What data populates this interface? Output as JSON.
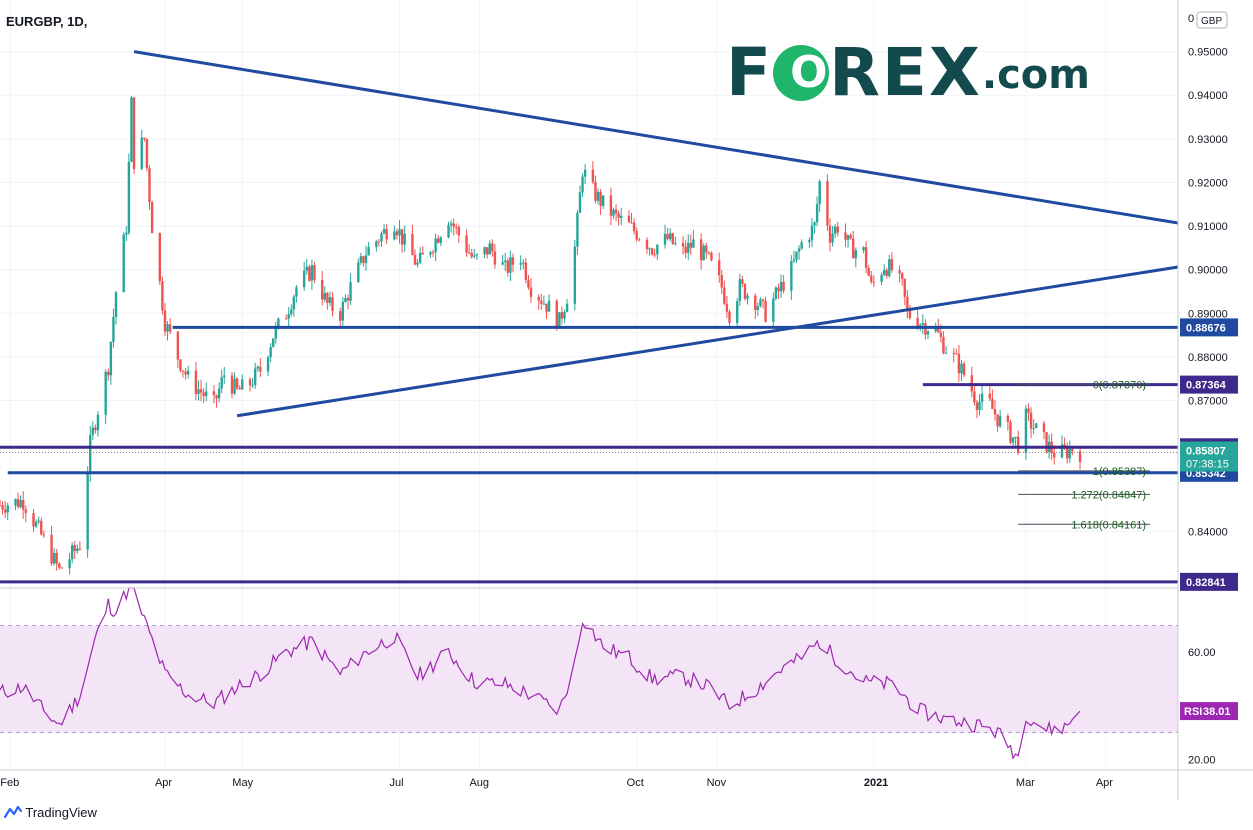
{
  "header": {
    "symbol": "EURGBP, 1D,"
  },
  "logo": {
    "brand_left": "F",
    "brand_o": "O",
    "brand_right": "REX",
    "brand_suffix": ".com",
    "text_color": "#134a4d",
    "o_color": "#1fb56a"
  },
  "footer": {
    "brand": "TradingView"
  },
  "chart_data": {
    "type": "candlestick",
    "price_axis": {
      "currency": "GBP",
      "top_label": "0",
      "ylim": [
        0.827,
        0.96
      ],
      "tick_labels": [
        "0.95000",
        "0.94000",
        "0.93000",
        "0.92000",
        "0.91000",
        "0.90000",
        "0.89000",
        "0.88000",
        "0.87000",
        "0.84000"
      ]
    },
    "x_axis": {
      "tick_labels": [
        "Feb",
        "Apr",
        "May",
        "Jul",
        "Aug",
        "Oct",
        "Nov",
        "2021",
        "Mar",
        "Apr"
      ],
      "tick_dates": [
        "2020-02-01",
        "2020-04-01",
        "2020-05-01",
        "2020-07-01",
        "2020-08-01",
        "2020-10-01",
        "2020-11-01",
        "2021-01-01",
        "2021-03-01",
        "2021-04-01"
      ],
      "xlim": [
        "2020-01-28",
        "2021-04-29"
      ]
    },
    "close_path": [
      [
        "2020-01-28",
        0.846
      ],
      [
        "2020-02-06",
        0.847
      ],
      [
        "2020-02-14",
        0.838
      ],
      [
        "2020-02-20",
        0.831
      ],
      [
        "2020-02-28",
        0.837
      ],
      [
        "2020-03-03",
        0.86
      ],
      [
        "2020-03-06",
        0.868
      ],
      [
        "2020-03-10",
        0.878
      ],
      [
        "2020-03-13",
        0.895
      ],
      [
        "2020-03-17",
        0.91
      ],
      [
        "2020-03-19",
        0.938
      ],
      [
        "2020-03-20",
        0.925
      ],
      [
        "2020-03-24",
        0.93
      ],
      [
        "2020-03-27",
        0.91
      ],
      [
        "2020-04-01",
        0.888
      ],
      [
        "2020-04-06",
        0.88
      ],
      [
        "2020-04-10",
        0.875
      ],
      [
        "2020-04-15",
        0.872
      ],
      [
        "2020-04-20",
        0.869
      ],
      [
        "2020-04-24",
        0.876
      ],
      [
        "2020-04-29",
        0.872
      ],
      [
        "2020-05-04",
        0.874
      ],
      [
        "2020-05-08",
        0.877
      ],
      [
        "2020-05-13",
        0.885
      ],
      [
        "2020-05-18",
        0.89
      ],
      [
        "2020-05-22",
        0.896
      ],
      [
        "2020-05-28",
        0.9
      ],
      [
        "2020-06-03",
        0.892
      ],
      [
        "2020-06-08",
        0.89
      ],
      [
        "2020-06-12",
        0.896
      ],
      [
        "2020-06-18",
        0.904
      ],
      [
        "2020-06-24",
        0.908
      ],
      [
        "2020-06-29",
        0.911
      ],
      [
        "2020-07-03",
        0.906
      ],
      [
        "2020-07-08",
        0.901
      ],
      [
        "2020-07-14",
        0.906
      ],
      [
        "2020-07-20",
        0.912
      ],
      [
        "2020-07-24",
        0.908
      ],
      [
        "2020-07-30",
        0.902
      ],
      [
        "2020-08-05",
        0.905
      ],
      [
        "2020-08-11",
        0.9
      ],
      [
        "2020-08-17",
        0.903
      ],
      [
        "2020-08-21",
        0.896
      ],
      [
        "2020-08-27",
        0.892
      ],
      [
        "2020-09-01",
        0.888
      ],
      [
        "2020-09-04",
        0.894
      ],
      [
        "2020-09-07",
        0.905
      ],
      [
        "2020-09-10",
        0.923
      ],
      [
        "2020-09-14",
        0.918
      ],
      [
        "2020-09-18",
        0.915
      ],
      [
        "2020-09-23",
        0.912
      ],
      [
        "2020-09-28",
        0.91
      ],
      [
        "2020-10-02",
        0.908
      ],
      [
        "2020-10-07",
        0.905
      ],
      [
        "2020-10-13",
        0.907
      ],
      [
        "2020-10-19",
        0.904
      ],
      [
        "2020-10-23",
        0.906
      ],
      [
        "2020-10-29",
        0.902
      ],
      [
        "2020-11-03",
        0.896
      ],
      [
        "2020-11-06",
        0.89
      ],
      [
        "2020-11-10",
        0.896
      ],
      [
        "2020-11-16",
        0.893
      ],
      [
        "2020-11-20",
        0.89
      ],
      [
        "2020-11-25",
        0.895
      ],
      [
        "2020-11-30",
        0.9
      ],
      [
        "2020-12-04",
        0.906
      ],
      [
        "2020-12-09",
        0.91
      ],
      [
        "2020-12-11",
        0.92
      ],
      [
        "2020-12-15",
        0.908
      ],
      [
        "2020-12-18",
        0.91
      ],
      [
        "2020-12-23",
        0.905
      ],
      [
        "2020-12-28",
        0.904
      ],
      [
        "2020-12-31",
        0.896
      ],
      [
        "2021-01-05",
        0.901
      ],
      [
        "2021-01-08",
        0.9
      ],
      [
        "2021-01-12",
        0.896
      ],
      [
        "2021-01-14",
        0.89
      ],
      [
        "2021-01-19",
        0.888
      ],
      [
        "2021-01-25",
        0.886
      ],
      [
        "2021-01-29",
        0.882
      ],
      [
        "2021-02-02",
        0.879
      ],
      [
        "2021-02-05",
        0.876
      ],
      [
        "2021-02-10",
        0.87
      ],
      [
        "2021-02-15",
        0.869
      ],
      [
        "2021-02-18",
        0.866
      ],
      [
        "2021-02-22",
        0.863
      ],
      [
        "2021-02-26",
        0.86
      ],
      [
        "2021-03-01",
        0.866
      ],
      [
        "2021-03-04",
        0.864
      ],
      [
        "2021-03-09",
        0.86
      ],
      [
        "2021-03-12",
        0.858
      ],
      [
        "2021-03-16",
        0.858
      ],
      [
        "2021-03-19",
        0.859
      ],
      [
        "2021-03-22",
        0.8581
      ]
    ],
    "trendlines": [
      {
        "name": "upper-trendline",
        "from": [
          "2020-03-20",
          0.95
        ],
        "to": [
          "2021-04-29",
          0.9107
        ],
        "color": "#1f4aa0"
      },
      {
        "name": "lower-trendline",
        "from": [
          "2020-04-29",
          0.8665
        ],
        "to": [
          "2021-04-29",
          0.9006
        ],
        "color": "#1f4aa0"
      }
    ],
    "horizontal_levels": [
      {
        "name": "level-08868",
        "price": 0.88676,
        "label": "0.88676",
        "start": "2020-04-04",
        "color": "#1f4aa0"
      },
      {
        "name": "level-08736",
        "price": 0.87364,
        "label": "0.87364",
        "start": "2021-01-20",
        "color": "#3d2a8a"
      },
      {
        "name": "level-08593",
        "price": 0.85927,
        "label": "0.85927",
        "start": "2020-01-28",
        "color": "#3d2a8a"
      },
      {
        "name": "level-08534",
        "price": 0.85342,
        "label": "0.85342",
        "start": "2020-01-31",
        "color": "#1f4aa0"
      },
      {
        "name": "level-08284",
        "price": 0.82841,
        "label": "0.82841",
        "start": "2020-01-28",
        "color": "#3d2a8a"
      }
    ],
    "fibonacci": [
      {
        "ratio": "0",
        "price": 0.8737,
        "label": "0(0.87370)"
      },
      {
        "ratio": "1",
        "price": 0.85387,
        "label": "1(0.85387)"
      },
      {
        "ratio": "1.272",
        "price": 0.84847,
        "label": "1.272(0.84847)"
      },
      {
        "ratio": "1.618",
        "price": 0.84161,
        "label": "1.618(0.84161)"
      }
    ],
    "fib_start_date": "2021-02-26",
    "current_price": {
      "value": 0.85807,
      "label": "0.85807",
      "countdown": "07:38:15",
      "color": "#26a69a"
    },
    "rsi": {
      "label": "RSI",
      "value_label": "38.01",
      "ylim": [
        16,
        84
      ],
      "band": [
        30,
        70
      ],
      "tick_labels": [
        "60.00",
        "20.00"
      ],
      "tick_values": [
        60,
        20
      ],
      "color": "#9c27b0",
      "band_color": "#f3e5f5",
      "path": [
        [
          "2020-01-28",
          45
        ],
        [
          "2020-02-06",
          47
        ],
        [
          "2020-02-14",
          38
        ],
        [
          "2020-02-20",
          33
        ],
        [
          "2020-02-28",
          44
        ],
        [
          "2020-03-05",
          65
        ],
        [
          "2020-03-10",
          78
        ],
        [
          "2020-03-13",
          75
        ],
        [
          "2020-03-19",
          86
        ],
        [
          "2020-03-24",
          72
        ],
        [
          "2020-04-01",
          52
        ],
        [
          "2020-04-10",
          44
        ],
        [
          "2020-04-20",
          41
        ],
        [
          "2020-04-29",
          47
        ],
        [
          "2020-05-08",
          52
        ],
        [
          "2020-05-18",
          60
        ],
        [
          "2020-05-28",
          64
        ],
        [
          "2020-06-08",
          52
        ],
        [
          "2020-06-18",
          60
        ],
        [
          "2020-06-29",
          66
        ],
        [
          "2020-07-08",
          51
        ],
        [
          "2020-07-20",
          60
        ],
        [
          "2020-07-30",
          49
        ],
        [
          "2020-08-11",
          48
        ],
        [
          "2020-08-21",
          44
        ],
        [
          "2020-09-01",
          38
        ],
        [
          "2020-09-07",
          56
        ],
        [
          "2020-09-10",
          73
        ],
        [
          "2020-09-18",
          62
        ],
        [
          "2020-09-28",
          58
        ],
        [
          "2020-10-07",
          50
        ],
        [
          "2020-10-19",
          51
        ],
        [
          "2020-10-29",
          47
        ],
        [
          "2020-11-06",
          40
        ],
        [
          "2020-11-16",
          46
        ],
        [
          "2020-11-25",
          53
        ],
        [
          "2020-12-04",
          58
        ],
        [
          "2020-12-11",
          64
        ],
        [
          "2020-12-18",
          57
        ],
        [
          "2020-12-28",
          49
        ],
        [
          "2021-01-08",
          48
        ],
        [
          "2021-01-19",
          38
        ],
        [
          "2021-01-29",
          35
        ],
        [
          "2021-02-10",
          33
        ],
        [
          "2021-02-18",
          30
        ],
        [
          "2021-02-26",
          21
        ],
        [
          "2021-03-01",
          37
        ],
        [
          "2021-03-09",
          31
        ],
        [
          "2021-03-16",
          32
        ],
        [
          "2021-03-22",
          38.01
        ]
      ]
    },
    "up_color": "#26a69a",
    "down_color": "#ef5350"
  }
}
